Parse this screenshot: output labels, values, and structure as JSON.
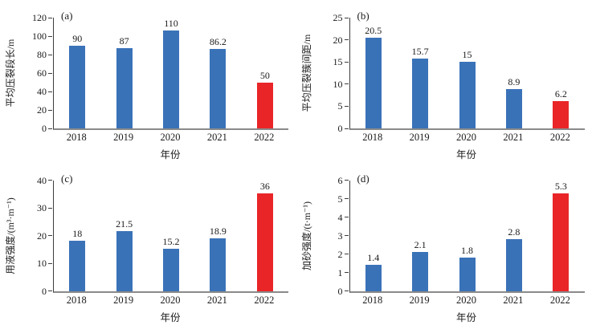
{
  "figure": {
    "background": "#ffffff",
    "colors": {
      "bar_blue": "#3A72B8",
      "bar_red": "#E92528",
      "axis_line": "#3d3d3d",
      "baseline": "#8a8a8a",
      "text": "#1a1a1a"
    }
  },
  "chart_data": [
    {
      "type": "bar",
      "panel_label": "(a)",
      "ylabel": "平均压裂段长/m",
      "xlabel": "年份",
      "categories": [
        "2018",
        "2019",
        "2020",
        "2021",
        "2022"
      ],
      "values": [
        90,
        87,
        110,
        86.2,
        50
      ],
      "value_labels": [
        "90",
        "87",
        "110",
        "86.2",
        "50"
      ],
      "yticks": [
        0,
        20,
        40,
        60,
        80,
        100,
        120
      ],
      "ylim": [
        0,
        120
      ],
      "highlight_index": 4,
      "bar_color": "#3A72B8",
      "highlight_color": "#E92528",
      "grid": "off",
      "legend": "none"
    },
    {
      "type": "bar",
      "panel_label": "(b)",
      "ylabel": "平均压裂簇间距/m",
      "xlabel": "年份",
      "categories": [
        "2018",
        "2019",
        "2020",
        "2021",
        "2022"
      ],
      "values": [
        20.5,
        15.7,
        15,
        8.9,
        6.2
      ],
      "value_labels": [
        "20.5",
        "15.7",
        "15",
        "8.9",
        "6.2"
      ],
      "yticks": [
        0,
        5,
        10,
        15,
        20,
        25
      ],
      "ylim": [
        0,
        25
      ],
      "highlight_index": 4,
      "bar_color": "#3A72B8",
      "highlight_color": "#E92528",
      "grid": "off",
      "legend": "none"
    },
    {
      "type": "bar",
      "panel_label": "(c)",
      "ylabel": "用液强度/(m³·m⁻¹)",
      "xlabel": "年份",
      "categories": [
        "2018",
        "2019",
        "2020",
        "2021",
        "2022"
      ],
      "values": [
        18,
        21.5,
        15.2,
        18.9,
        36
      ],
      "value_labels": [
        "18",
        "21.5",
        "15.2",
        "18.9",
        "36"
      ],
      "yticks": [
        0,
        10,
        20,
        30,
        40
      ],
      "ylim": [
        0,
        40
      ],
      "highlight_index": 4,
      "bar_color": "#3A72B8",
      "highlight_color": "#E92528",
      "grid": "off",
      "legend": "none"
    },
    {
      "type": "bar",
      "panel_label": "(d)",
      "ylabel": "加砂强度/(t·m⁻¹)",
      "xlabel": "年份",
      "categories": [
        "2018",
        "2019",
        "2020",
        "2021",
        "2022"
      ],
      "values": [
        1.4,
        2.1,
        1.8,
        2.8,
        5.3
      ],
      "value_labels": [
        "1.4",
        "2.1",
        "1.8",
        "2.8",
        "5.3"
      ],
      "yticks": [
        0,
        1,
        2,
        3,
        4,
        5,
        6
      ],
      "ylim": [
        0,
        6
      ],
      "highlight_index": 4,
      "bar_color": "#3A72B8",
      "highlight_color": "#E92528",
      "grid": "off",
      "legend": "none"
    }
  ]
}
